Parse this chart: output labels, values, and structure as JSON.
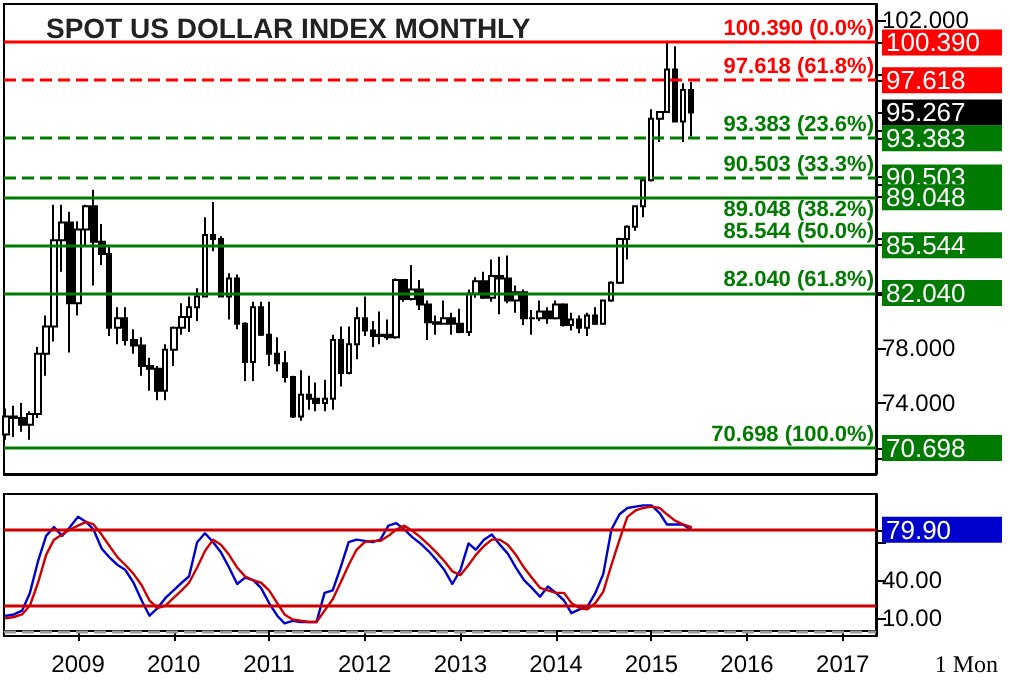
{
  "chart_data": [
    {
      "type": "candlestick",
      "title": "SPOT US DOLLAR INDEX MONTHLY",
      "color": "#000000",
      "tick_labels": "y",
      "xlim": [
        "2008-03-24",
        "2017-05-08"
      ],
      "ylim": [
        68.8,
        103.2
      ],
      "yticks": [
        {
          "value": 70,
          "label": null
        },
        {
          "value": 74,
          "label": "74.000"
        },
        {
          "value": 78,
          "label": "78.000"
        },
        {
          "value": 82,
          "label": null
        },
        {
          "value": 86,
          "label": null
        },
        {
          "value": 90,
          "label": null
        },
        {
          "value": 94,
          "label": null
        },
        {
          "value": 98,
          "label": null
        },
        {
          "value": 102,
          "label": "102.000"
        },
        {
          "value": 100.39,
          "label": "100.390"
        },
        {
          "value": 97.618,
          "label": "97.618"
        },
        {
          "value": 95.267,
          "label": "95.267"
        },
        {
          "value": 93.383,
          "label": "93.383"
        },
        {
          "value": 90.503,
          "label": "90.503"
        },
        {
          "value": 89.048,
          "label": "89.048"
        },
        {
          "value": 85.544,
          "label": "85.544"
        },
        {
          "value": 82.04,
          "label": "82.040"
        },
        {
          "value": 70.698,
          "label": "70.698"
        }
      ],
      "x": [
        "2008-04",
        "2008-05",
        "2008-06",
        "2008-07",
        "2008-08",
        "2008-09",
        "2008-10",
        "2008-11",
        "2008-12",
        "2009-01",
        "2009-02",
        "2009-03",
        "2009-04",
        "2009-05",
        "2009-06",
        "2009-07",
        "2009-08",
        "2009-09",
        "2009-10",
        "2009-11",
        "2009-12",
        "2010-01",
        "2010-02",
        "2010-03",
        "2010-04",
        "2010-05",
        "2010-06",
        "2010-07",
        "2010-08",
        "2010-09",
        "2010-10",
        "2010-11",
        "2010-12",
        "2011-01",
        "2011-02",
        "2011-03",
        "2011-04",
        "2011-05",
        "2011-06",
        "2011-07",
        "2011-08",
        "2011-09",
        "2011-10",
        "2011-11",
        "2011-12",
        "2012-01",
        "2012-02",
        "2012-03",
        "2012-04",
        "2012-05",
        "2012-06",
        "2012-07",
        "2012-08",
        "2012-09",
        "2012-10",
        "2012-11",
        "2012-12",
        "2013-01",
        "2013-02",
        "2013-03",
        "2013-04",
        "2013-05",
        "2013-06",
        "2013-07",
        "2013-08",
        "2013-09",
        "2013-10",
        "2013-11",
        "2013-12",
        "2014-01",
        "2014-02",
        "2014-03",
        "2014-04",
        "2014-05",
        "2014-06",
        "2014-07",
        "2014-08",
        "2014-09",
        "2014-10",
        "2014-11",
        "2014-12",
        "2015-01",
        "2015-02",
        "2015-03",
        "2015-04",
        "2015-05",
        "2015-06"
      ],
      "ohlc": [
        [
          71.7,
          73.6,
          71.3,
          73.0
        ],
        [
          73.0,
          73.8,
          71.5,
          72.9
        ],
        [
          72.9,
          74.0,
          71.9,
          72.4
        ],
        [
          72.4,
          73.4,
          71.3,
          73.2
        ],
        [
          73.2,
          78.1,
          72.9,
          77.6
        ],
        [
          77.6,
          80.4,
          76.0,
          79.6
        ],
        [
          79.6,
          88.5,
          78.5,
          85.9
        ],
        [
          85.9,
          88.5,
          83.6,
          87.2
        ],
        [
          87.2,
          88.0,
          77.7,
          81.3
        ],
        [
          81.3,
          87.3,
          80.4,
          86.7
        ],
        [
          86.7,
          88.5,
          85.5,
          88.4
        ],
        [
          88.4,
          89.6,
          82.6,
          85.8
        ],
        [
          85.8,
          87.1,
          84.1,
          84.9
        ],
        [
          84.9,
          85.5,
          78.9,
          79.5
        ],
        [
          79.5,
          81.0,
          78.3,
          80.2
        ],
        [
          80.2,
          81.0,
          78.2,
          78.6
        ],
        [
          78.6,
          79.4,
          77.6,
          78.2
        ],
        [
          78.2,
          78.8,
          76.0,
          76.7
        ],
        [
          76.7,
          77.3,
          74.9,
          76.5
        ],
        [
          76.5,
          76.7,
          74.2,
          74.9
        ],
        [
          74.9,
          78.3,
          74.2,
          77.9
        ],
        [
          77.9,
          79.6,
          76.7,
          79.5
        ],
        [
          79.5,
          81.3,
          79.0,
          80.3
        ],
        [
          80.3,
          81.8,
          79.2,
          81.0
        ],
        [
          81.0,
          82.4,
          80.0,
          81.8
        ],
        [
          81.8,
          87.6,
          81.8,
          86.3
        ],
        [
          86.3,
          88.7,
          85.1,
          86.0
        ],
        [
          86.0,
          86.2,
          81.8,
          81.8
        ],
        [
          81.8,
          83.5,
          80.1,
          83.1
        ],
        [
          83.1,
          83.4,
          79.4,
          79.8
        ],
        [
          79.8,
          79.9,
          75.6,
          77.0
        ],
        [
          77.0,
          81.4,
          75.6,
          81.0
        ],
        [
          81.0,
          81.4,
          78.9,
          79.0
        ],
        [
          79.0,
          81.4,
          76.7,
          77.6
        ],
        [
          77.6,
          78.8,
          76.3,
          76.9
        ],
        [
          76.9,
          77.8,
          75.5,
          75.9
        ],
        [
          75.9,
          76.0,
          72.9,
          73.0
        ],
        [
          73.0,
          76.4,
          72.7,
          74.6
        ],
        [
          74.6,
          76.0,
          73.5,
          74.3
        ],
        [
          74.3,
          75.5,
          73.4,
          74.0
        ],
        [
          74.0,
          75.7,
          73.4,
          74.3
        ],
        [
          74.3,
          79.0,
          73.5,
          78.6
        ],
        [
          78.6,
          79.6,
          75.2,
          76.2
        ],
        [
          76.2,
          79.6,
          76.1,
          78.3
        ],
        [
          78.3,
          81.0,
          77.2,
          80.2
        ],
        [
          80.2,
          81.8,
          78.9,
          79.3
        ],
        [
          79.3,
          80.0,
          78.1,
          78.9
        ],
        [
          78.9,
          80.7,
          78.3,
          79.0
        ],
        [
          79.0,
          80.1,
          78.6,
          78.8
        ],
        [
          78.8,
          83.1,
          78.7,
          83.0
        ],
        [
          83.0,
          83.0,
          81.4,
          81.6
        ],
        [
          81.6,
          84.1,
          81.5,
          82.3
        ],
        [
          82.3,
          83.0,
          80.8,
          81.2
        ],
        [
          81.2,
          81.5,
          78.6,
          79.9
        ],
        [
          79.9,
          80.4,
          79.0,
          79.8
        ],
        [
          79.8,
          81.5,
          79.8,
          80.2
        ],
        [
          80.2,
          80.6,
          79.0,
          79.8
        ],
        [
          79.8,
          80.9,
          79.1,
          79.2
        ],
        [
          79.2,
          82.3,
          78.9,
          82.0
        ],
        [
          82.0,
          83.2,
          81.7,
          82.9
        ],
        [
          82.9,
          83.6,
          81.6,
          81.7
        ],
        [
          81.7,
          84.5,
          81.4,
          83.3
        ],
        [
          83.3,
          84.7,
          80.5,
          83.1
        ],
        [
          83.1,
          84.8,
          81.3,
          81.5
        ],
        [
          81.5,
          82.6,
          80.6,
          82.1
        ],
        [
          82.1,
          82.3,
          79.7,
          80.2
        ],
        [
          80.2,
          80.8,
          79.0,
          80.2
        ],
        [
          80.2,
          81.5,
          80.0,
          80.7
        ],
        [
          80.7,
          81.0,
          79.8,
          80.2
        ],
        [
          80.2,
          81.5,
          80.1,
          81.2
        ],
        [
          81.2,
          81.3,
          79.6,
          79.7
        ],
        [
          79.7,
          80.6,
          79.3,
          80.1
        ],
        [
          80.1,
          80.4,
          79.1,
          79.5
        ],
        [
          79.5,
          80.6,
          78.9,
          80.4
        ],
        [
          80.4,
          81.0,
          79.7,
          79.8
        ],
        [
          79.8,
          81.5,
          79.8,
          81.5
        ],
        [
          81.5,
          82.9,
          81.4,
          82.8
        ],
        [
          82.8,
          86.1,
          82.7,
          86.0
        ],
        [
          86.0,
          87.0,
          84.5,
          86.9
        ],
        [
          86.9,
          88.4,
          86.6,
          88.4
        ],
        [
          88.4,
          90.5,
          87.6,
          90.3
        ],
        [
          90.3,
          95.5,
          90.2,
          94.8
        ],
        [
          94.8,
          95.3,
          93.1,
          95.3
        ],
        [
          95.3,
          100.39,
          95.3,
          98.4
        ],
        [
          98.4,
          100.1,
          94.6,
          94.6
        ],
        [
          94.6,
          97.4,
          93.1,
          96.9
        ],
        [
          96.9,
          97.5,
          93.5,
          95.267
        ]
      ],
      "ref_lines": [
        {
          "axis": "y",
          "value": 100.39,
          "label": "100.390 (0.0%)",
          "color": "#ff0000",
          "line_style": "solid"
        },
        {
          "axis": "y",
          "value": 97.618,
          "label": "97.618 (61.8%)",
          "color": "#ff0000",
          "line_style": "dashed"
        },
        {
          "axis": "y",
          "value": 93.383,
          "label": "93.383 (23.6%)",
          "color": "#007a00",
          "line_style": "dashed"
        },
        {
          "axis": "y",
          "value": 90.503,
          "label": "90.503 (33.3%)",
          "color": "#007a00",
          "line_style": "dashed"
        },
        {
          "axis": "y",
          "value": 89.048,
          "label": "89.048 (38.2%)",
          "color": "#007a00",
          "line_style": "solid"
        },
        {
          "axis": "y",
          "value": 85.544,
          "label": "85.544 (50.0%)",
          "color": "#007a00",
          "line_style": "solid"
        },
        {
          "axis": "y",
          "value": 82.04,
          "label": "82.040 (61.8%)",
          "color": "#007a00",
          "line_style": "solid"
        },
        {
          "axis": "y",
          "value": 70.698,
          "label": "70.698 (100.0%)",
          "color": "#007a00",
          "line_style": "solid"
        }
      ]
    },
    {
      "type": "line",
      "marker": "none",
      "line_style": "solid",
      "xlim": [
        "2008-03-24",
        "2017-05-08"
      ],
      "xticks": [
        "2009",
        "2010",
        "2011",
        "2012",
        "2013",
        "2014",
        "2015",
        "2016",
        "2017"
      ],
      "ylim": [
        -4,
        108
      ],
      "yticks": [
        {
          "value": 10,
          "label": "10.00"
        },
        {
          "value": 40,
          "label": "40.00"
        },
        {
          "value": 70,
          "label": null
        },
        {
          "value": 79.9,
          "label": "79.90"
        }
      ],
      "x": [
        "2008-04",
        "2008-05",
        "2008-06",
        "2008-07",
        "2008-08",
        "2008-09",
        "2008-10",
        "2008-11",
        "2008-12",
        "2009-01",
        "2009-02",
        "2009-03",
        "2009-04",
        "2009-05",
        "2009-06",
        "2009-07",
        "2009-08",
        "2009-09",
        "2009-10",
        "2009-11",
        "2009-12",
        "2010-01",
        "2010-02",
        "2010-03",
        "2010-04",
        "2010-05",
        "2010-06",
        "2010-07",
        "2010-08",
        "2010-09",
        "2010-10",
        "2010-11",
        "2010-12",
        "2011-01",
        "2011-02",
        "2011-03",
        "2011-04",
        "2011-05",
        "2011-06",
        "2011-07",
        "2011-08",
        "2011-09",
        "2011-10",
        "2011-11",
        "2011-12",
        "2012-01",
        "2012-02",
        "2012-03",
        "2012-04",
        "2012-05",
        "2012-06",
        "2012-07",
        "2012-08",
        "2012-09",
        "2012-10",
        "2012-11",
        "2012-12",
        "2013-01",
        "2013-02",
        "2013-03",
        "2013-04",
        "2013-05",
        "2013-06",
        "2013-07",
        "2013-08",
        "2013-09",
        "2013-10",
        "2013-11",
        "2013-12",
        "2014-01",
        "2014-02",
        "2014-03",
        "2014-04",
        "2014-05",
        "2014-06",
        "2014-07",
        "2014-08",
        "2014-09",
        "2014-10",
        "2014-11",
        "2014-12",
        "2015-01",
        "2015-02",
        "2015-03",
        "2015-04",
        "2015-05",
        "2015-06"
      ],
      "series": [
        {
          "color": "#0000cc",
          "values": [
            12,
            13,
            16,
            30,
            55,
            75,
            82,
            75,
            82,
            90,
            86,
            80,
            65,
            58,
            52,
            48,
            38,
            24,
            12,
            18,
            26,
            32,
            38,
            43,
            70,
            77,
            70,
            62,
            50,
            37,
            42,
            40,
            34,
            22,
            12,
            6,
            8,
            7,
            7,
            7,
            30,
            32,
            50,
            70,
            72,
            71,
            70,
            72,
            83,
            85,
            80,
            74,
            69,
            63,
            56,
            48,
            37,
            48,
            69,
            64,
            72,
            76,
            68,
            61,
            50,
            40,
            34,
            27,
            35,
            30,
            24,
            14,
            17,
            19,
            30,
            45,
            80,
            92,
            97,
            98,
            99,
            99,
            93,
            84,
            84,
            84,
            79.9
          ]
        },
        {
          "color": "#cc0000",
          "values": [
            10,
            11,
            13,
            20,
            38,
            60,
            72,
            76,
            80,
            83,
            86,
            84,
            76,
            67,
            58,
            52,
            45,
            36,
            24,
            18,
            20,
            26,
            32,
            38,
            50,
            63,
            72,
            68,
            60,
            50,
            43,
            40,
            38,
            32,
            22,
            13,
            9,
            8,
            7,
            7,
            16,
            25,
            38,
            52,
            64,
            70,
            71,
            71,
            75,
            80,
            83,
            79,
            74,
            68,
            62,
            55,
            47,
            44,
            52,
            60,
            67,
            72,
            72,
            68,
            60,
            50,
            42,
            34,
            32,
            30,
            30,
            22,
            18,
            17,
            22,
            31,
            52,
            72,
            90,
            95,
            97,
            98,
            97,
            92,
            87,
            84,
            82
          ]
        }
      ],
      "ref_lines": [
        {
          "axis": "y",
          "value": 80,
          "color": "#cc0000",
          "line_style": "solid"
        },
        {
          "axis": "y",
          "value": 20,
          "color": "#cc0000",
          "line_style": "solid"
        },
        {
          "axis": "y",
          "value": 0,
          "color": "#999999",
          "line_style": "dashed"
        }
      ],
      "annotations": [
        "1 Mon"
      ]
    }
  ]
}
